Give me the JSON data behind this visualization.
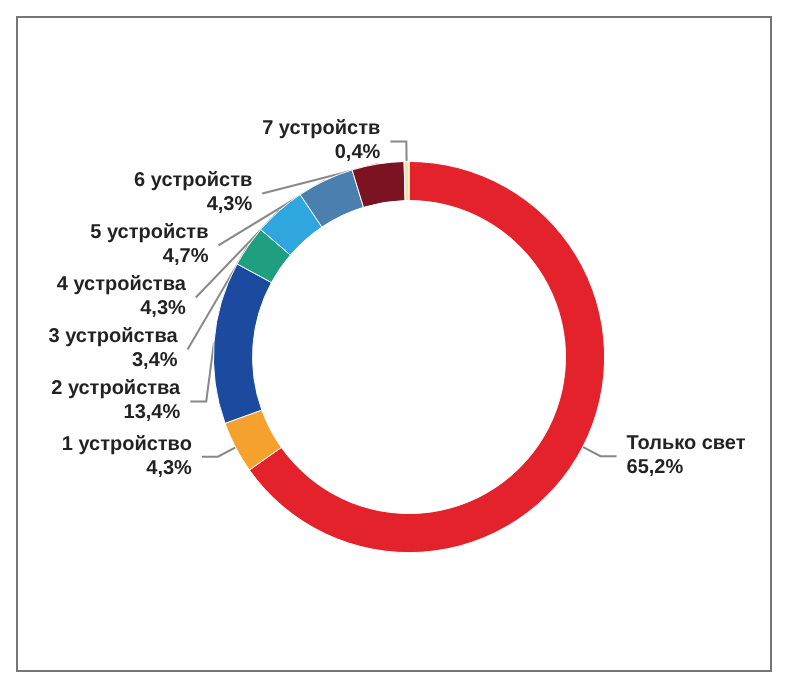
{
  "chart_data": {
    "type": "donut",
    "categories": [
      "Только свет",
      "1 устройство",
      "2 устройства",
      "3 устройства",
      "4 устройства",
      "5 устройств",
      "6 устройств",
      "7 устройств"
    ],
    "values": [
      65.2,
      4.3,
      13.4,
      3.4,
      4.3,
      4.7,
      4.3,
      0.4
    ],
    "colors": [
      "#e3222b",
      "#f5a12d",
      "#1b4a9e",
      "#1f9e80",
      "#2fa7de",
      "#4a7fb0",
      "#7b1322",
      "#efe2a6"
    ],
    "value_labels": [
      "65,2%",
      "4,3%",
      "13,4%",
      "3,4%",
      "4,3%",
      "4,7%",
      "4,3%",
      "0,4%"
    ],
    "legend": false
  }
}
